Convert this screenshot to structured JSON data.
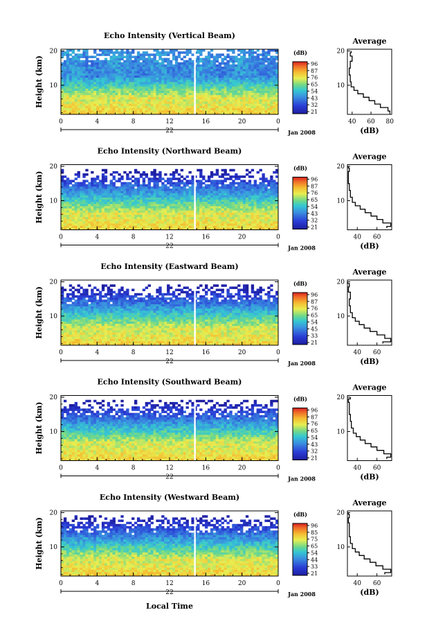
{
  "figure": {
    "xlabel": "Local Time",
    "date_label": "Jan 2008"
  },
  "chart_data": [
    {
      "type": "heatmap",
      "title": "Echo Intensity (Vertical Beam)",
      "ylabel": "Height (km)",
      "xlim": [
        0,
        24
      ],
      "ylim": [
        1.5,
        20.5
      ],
      "x_ticks": [
        "0",
        "4",
        "8",
        "12",
        "16",
        "20",
        "0"
      ],
      "day_label": "22",
      "y_ticks": [
        "10",
        "20"
      ],
      "colorbar": {
        "unit": "(dB)",
        "ticks": [
          "96",
          "87",
          "76",
          "65",
          "54",
          "43",
          "32",
          "21"
        ]
      }
    },
    {
      "type": "heatmap",
      "title": "Echo Intensity (Northward Beam)",
      "ylabel": "Height (km)",
      "xlim": [
        0,
        24
      ],
      "ylim": [
        1.5,
        20.5
      ],
      "x_ticks": [
        "0",
        "4",
        "8",
        "12",
        "16",
        "20",
        "0"
      ],
      "day_label": "22",
      "y_ticks": [
        "10",
        "20"
      ],
      "colorbar": {
        "unit": "(dB)",
        "ticks": [
          "96",
          "87",
          "76",
          "65",
          "54",
          "43",
          "32",
          "21"
        ]
      }
    },
    {
      "type": "heatmap",
      "title": "Echo Intensity (Eastward Beam)",
      "ylabel": "Height (km)",
      "xlim": [
        0,
        24
      ],
      "ylim": [
        1.5,
        20.5
      ],
      "x_ticks": [
        "0",
        "4",
        "8",
        "12",
        "16",
        "20",
        "0"
      ],
      "day_label": "22",
      "y_ticks": [
        "10",
        "20"
      ],
      "colorbar": {
        "unit": "(dB)",
        "ticks": [
          "96",
          "87",
          "76",
          "65",
          "54",
          "45",
          "33",
          "21"
        ]
      }
    },
    {
      "type": "heatmap",
      "title": "Echo Intensity (Southward Beam)",
      "ylabel": "Height (km)",
      "xlim": [
        0,
        24
      ],
      "ylim": [
        1.5,
        20.5
      ],
      "x_ticks": [
        "0",
        "4",
        "8",
        "12",
        "16",
        "20",
        "0"
      ],
      "day_label": "22",
      "y_ticks": [
        "10",
        "20"
      ],
      "colorbar": {
        "unit": "(dB)",
        "ticks": [
          "96",
          "87",
          "76",
          "65",
          "54",
          "43",
          "32",
          "21"
        ]
      }
    },
    {
      "type": "heatmap",
      "title": "Echo Intensity (Westward Beam)",
      "ylabel": "Height (km)",
      "xlim": [
        0,
        24
      ],
      "ylim": [
        1.5,
        20.5
      ],
      "x_ticks": [
        "0",
        "4",
        "8",
        "12",
        "16",
        "20",
        "0"
      ],
      "day_label": "22",
      "y_ticks": [
        "10",
        "20"
      ],
      "colorbar": {
        "unit": "(dB)",
        "ticks": [
          "96",
          "85",
          "75",
          "65",
          "54",
          "44",
          "33",
          "21"
        ]
      }
    },
    {
      "type": "line",
      "title": "Average",
      "xlabel": "(dB)",
      "ylim": [
        1.5,
        20.5
      ],
      "xlim": [
        35,
        82
      ],
      "x_ticks": [
        "40",
        "60",
        "80"
      ],
      "y_ticks": [
        "10",
        "20"
      ],
      "x": [
        80,
        78,
        70,
        64,
        58,
        52,
        46,
        42,
        39,
        38,
        37,
        38,
        40,
        38,
        39
      ],
      "y": [
        2,
        3,
        4,
        5,
        6,
        7,
        8,
        9,
        10,
        12,
        14,
        16,
        18,
        19,
        20
      ]
    },
    {
      "type": "line",
      "title": "Average",
      "xlabel": "(dB)",
      "ylim": [
        1.5,
        20.5
      ],
      "xlim": [
        30,
        75
      ],
      "x_ticks": [
        "40",
        "60"
      ],
      "y_ticks": [
        "10",
        "20"
      ],
      "x": [
        70,
        74,
        66,
        60,
        54,
        48,
        43,
        38,
        35,
        33,
        32,
        31,
        31,
        32,
        31
      ],
      "y": [
        2,
        3,
        4,
        5,
        6,
        7,
        8,
        9,
        10,
        12,
        14,
        16,
        18,
        19,
        20
      ]
    },
    {
      "type": "line",
      "title": "Average",
      "xlabel": "(dB)",
      "ylim": [
        1.5,
        20.5
      ],
      "xlim": [
        30,
        75
      ],
      "x_ticks": [
        "40",
        "60"
      ],
      "y_ticks": [
        "10",
        "20"
      ],
      "x": [
        66,
        74,
        68,
        60,
        53,
        47,
        42,
        38,
        35,
        33,
        32,
        33,
        31,
        32,
        30
      ],
      "y": [
        2,
        3,
        4,
        5,
        6,
        7,
        8,
        9,
        10,
        12,
        14,
        16,
        18,
        19,
        20
      ]
    },
    {
      "type": "line",
      "title": "Average",
      "xlabel": "(dB)",
      "ylim": [
        1.5,
        20.5
      ],
      "xlim": [
        30,
        75
      ],
      "x_ticks": [
        "40",
        "60"
      ],
      "y_ticks": [
        "10",
        "20"
      ],
      "x": [
        70,
        74,
        67,
        60,
        54,
        48,
        43,
        39,
        36,
        34,
        33,
        32,
        32,
        31,
        33
      ],
      "y": [
        2,
        3,
        4,
        5,
        6,
        7,
        8,
        9,
        10,
        12,
        14,
        16,
        18,
        19,
        20
      ]
    },
    {
      "type": "line",
      "title": "Average",
      "xlabel": "(dB)",
      "ylim": [
        1.5,
        20.5
      ],
      "xlim": [
        30,
        75
      ],
      "x_ticks": [
        "40",
        "60"
      ],
      "y_ticks": [
        "10",
        "20"
      ],
      "x": [
        68,
        74,
        66,
        59,
        53,
        47,
        42,
        38,
        35,
        33,
        32,
        32,
        31,
        32,
        31
      ],
      "y": [
        2,
        3,
        4,
        5,
        6,
        7,
        8,
        9,
        10,
        12,
        14,
        16,
        18,
        19,
        20
      ]
    }
  ]
}
